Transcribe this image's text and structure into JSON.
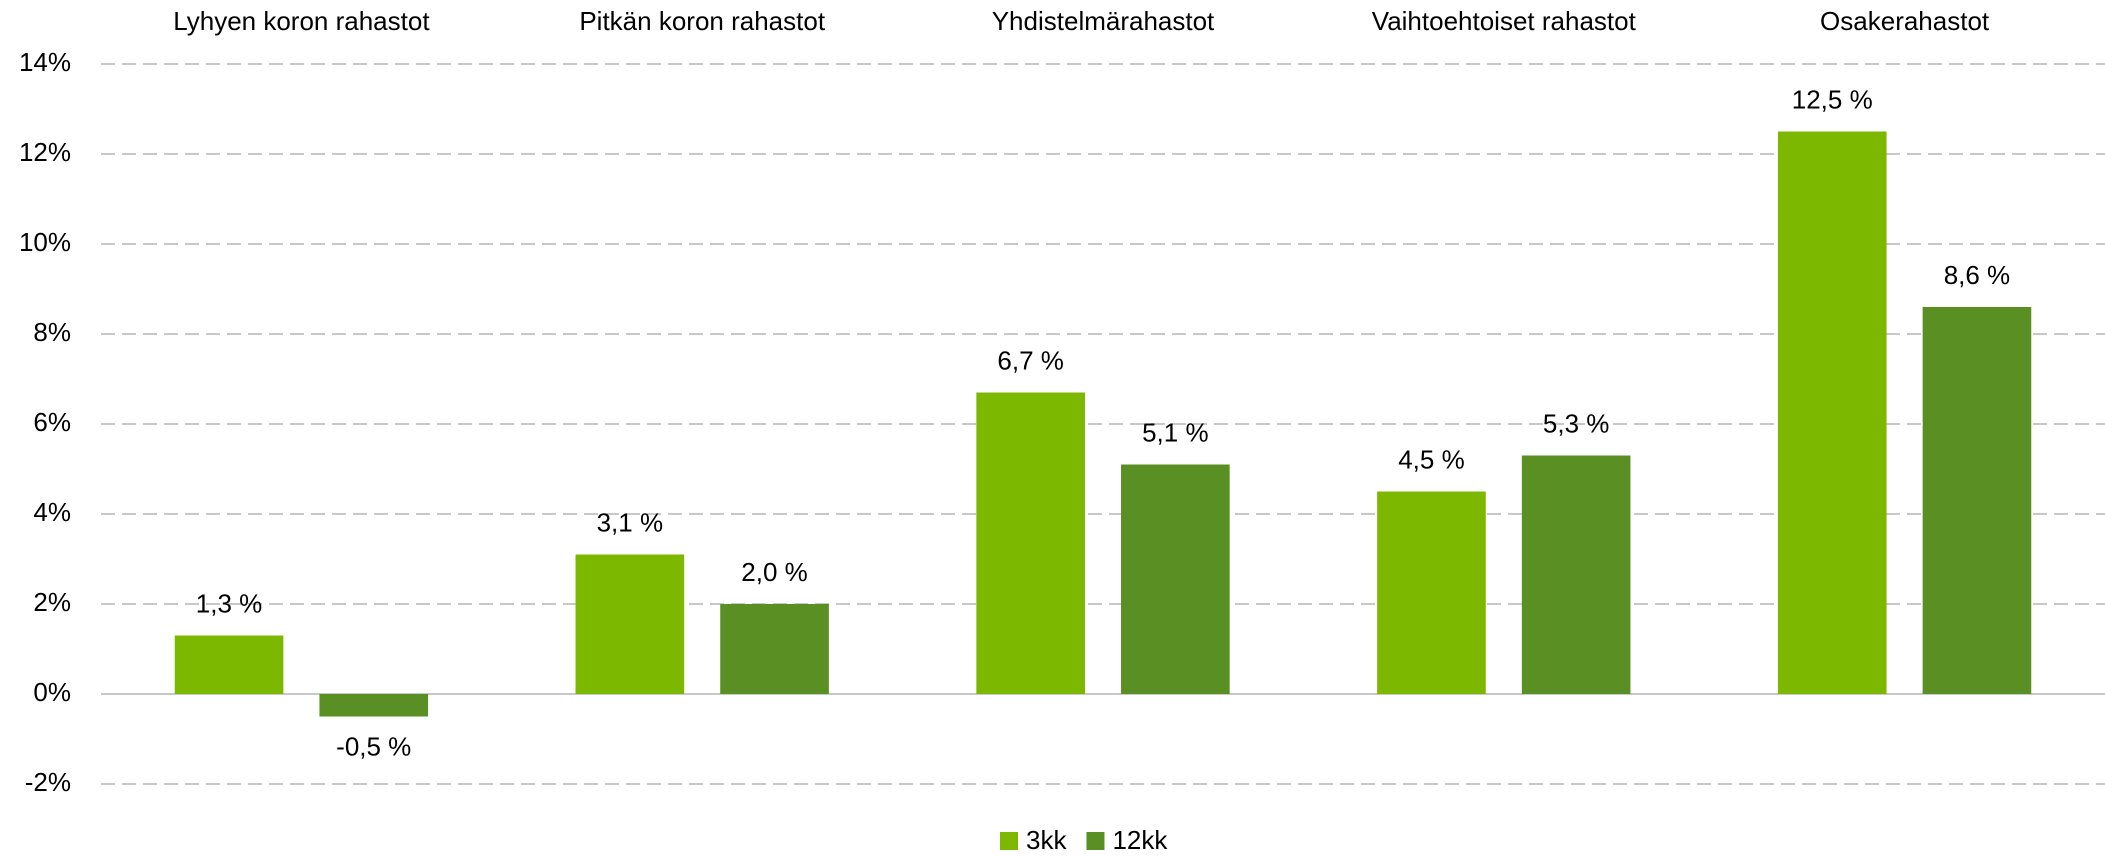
{
  "chart_data": {
    "type": "bar",
    "categories": [
      "Lyhyen koron rahastot",
      "Pitkän koron rahastot",
      "Yhdistelmärahastot",
      "Vaihtoehtoiset rahastot",
      "Osakerahastot"
    ],
    "series": [
      {
        "name": "3kk",
        "color": "#7cb800",
        "values": [
          1.3,
          3.1,
          6.7,
          4.5,
          12.5
        ],
        "value_labels": [
          "1,3 %",
          "3,1 %",
          "6,7 %",
          "4,5 %",
          "12,5 %"
        ]
      },
      {
        "name": "12kk",
        "color": "#5a8f23",
        "values": [
          -0.5,
          2.0,
          5.1,
          5.3,
          8.6
        ],
        "value_labels": [
          "-0,5 %",
          "2,0 %",
          "5,1 %",
          "5,3 %",
          "8,6 %"
        ]
      }
    ],
    "ylim": [
      -2,
      14
    ],
    "yticks": [
      {
        "value": -2,
        "label": "-2%"
      },
      {
        "value": 0,
        "label": "0%"
      },
      {
        "value": 2,
        "label": "2%"
      },
      {
        "value": 4,
        "label": "4%"
      },
      {
        "value": 6,
        "label": "6%"
      },
      {
        "value": 8,
        "label": "8%"
      },
      {
        "value": 10,
        "label": "10%"
      },
      {
        "value": 12,
        "label": "12%"
      },
      {
        "value": 14,
        "label": "14%"
      }
    ],
    "grid": true,
    "legend": "bottom"
  }
}
